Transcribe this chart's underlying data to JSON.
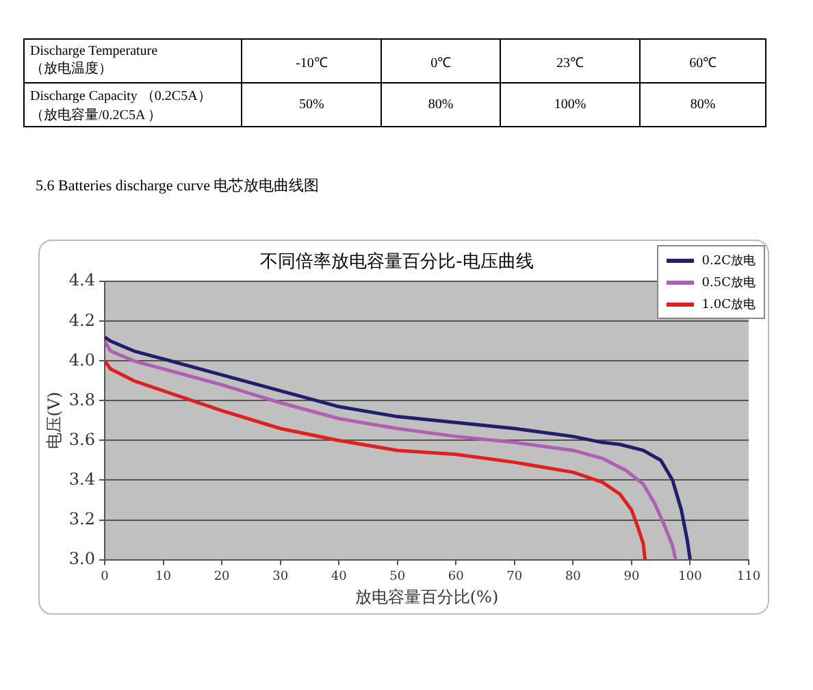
{
  "chart_data": [
    {
      "type": "other",
      "annotations": [
        "Discharge Temperature",
        "（放电温度）",
        "-10℃",
        "0℃",
        "23℃",
        "60℃",
        "Discharge Capacity （0.2C5A）",
        "（放电容量/0.2C5A ）",
        "50%",
        "80%",
        "100%",
        "80%",
        "5.6 Batteries discharge curve 电芯放电曲线图"
      ]
    },
    {
      "type": "line",
      "title": "不同倍率放电容量百分比-电压曲线",
      "xlabel": "放电容量百分比(%)",
      "ylabel": "电压(V)",
      "xlim": [
        0,
        110
      ],
      "xticks": [
        0,
        10,
        20,
        30,
        40,
        50,
        60,
        70,
        80,
        90,
        100,
        110
      ],
      "ylim": [
        3.0,
        4.4
      ],
      "yticks": [
        {
          "value": 3.0,
          "label": "3.0"
        },
        3.2,
        3.4,
        3.6,
        3.8,
        {
          "value": 4.0,
          "label": "4.0"
        },
        4.2,
        4.4
      ],
      "grid": "y",
      "legend": "top right",
      "marker": "none",
      "line_style": "solid",
      "series": [
        {
          "name": "0.2C放电",
          "color": "#1f1f6b",
          "x": [
            0,
            1,
            5,
            10,
            20,
            30,
            40,
            50,
            60,
            70,
            80,
            85,
            88,
            92,
            95,
            97,
            98.5,
            99.5,
            100
          ],
          "values": [
            4.12,
            4.1,
            4.05,
            4.01,
            3.93,
            3.85,
            3.77,
            3.72,
            3.69,
            3.66,
            3.62,
            3.59,
            3.58,
            3.55,
            3.5,
            3.4,
            3.25,
            3.1,
            3.0
          ]
        },
        {
          "name": "0.5C放电",
          "color": "#b060b0",
          "x": [
            0,
            1,
            5,
            10,
            20,
            30,
            40,
            50,
            60,
            70,
            80,
            85,
            89,
            92,
            94,
            95.5,
            97,
            97.5
          ],
          "values": [
            4.1,
            4.05,
            4.0,
            3.96,
            3.88,
            3.79,
            3.71,
            3.66,
            3.62,
            3.59,
            3.55,
            3.51,
            3.45,
            3.38,
            3.28,
            3.18,
            3.07,
            3.0
          ]
        },
        {
          "name": "1.0C放电",
          "color": "#e02020",
          "x": [
            0,
            1,
            5,
            10,
            20,
            30,
            40,
            50,
            60,
            70,
            80,
            85,
            88,
            90,
            91,
            92,
            92.3
          ],
          "values": [
            4.0,
            3.96,
            3.9,
            3.85,
            3.75,
            3.66,
            3.6,
            3.55,
            3.53,
            3.49,
            3.44,
            3.39,
            3.33,
            3.25,
            3.17,
            3.08,
            3.0
          ]
        }
      ]
    }
  ]
}
